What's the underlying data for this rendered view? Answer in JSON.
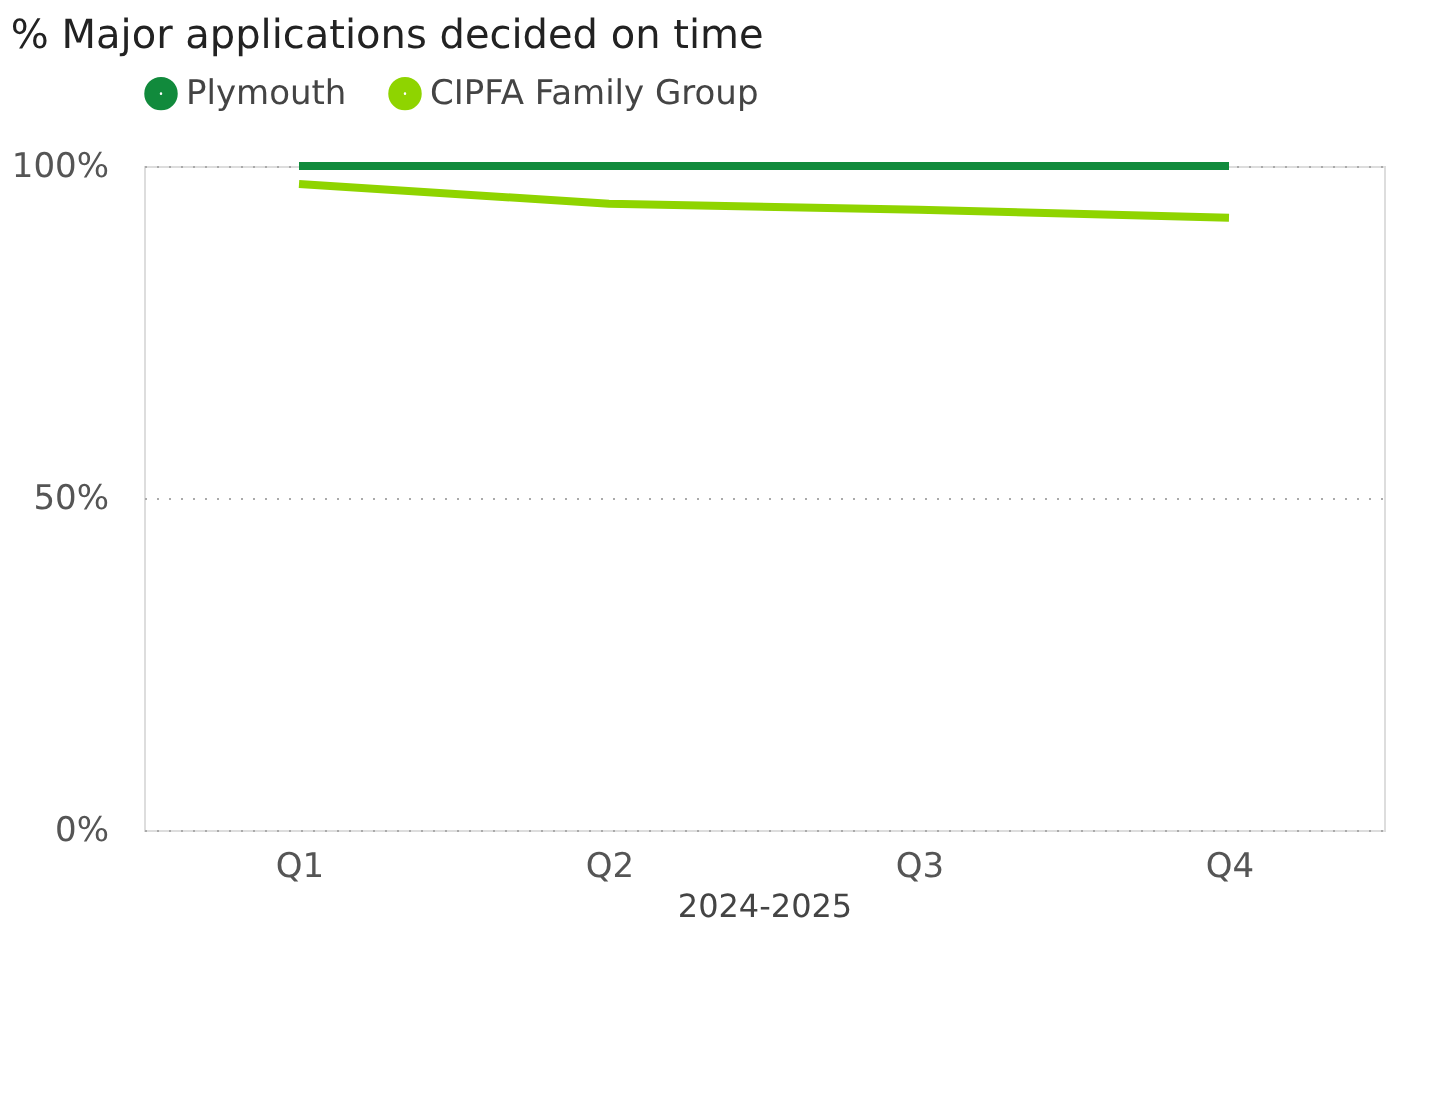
{
  "chart_data": {
    "type": "line",
    "title": "% Major applications decided on time",
    "categories": [
      "Q1",
      "Q2",
      "Q3",
      "Q4"
    ],
    "xlabel": "2024-2025",
    "series": [
      {
        "name": "Plymouth",
        "color": "#118a3c",
        "values": [
          100,
          100,
          100,
          100
        ]
      },
      {
        "name": "CIPFA Family Group",
        "color": "#8fd400",
        "values": [
          97.3,
          94.3,
          93.4,
          92.2
        ]
      }
    ],
    "ylim": [
      0,
      100
    ],
    "yticks": [
      {
        "value": 0,
        "label": "0%"
      },
      {
        "value": 50,
        "label": "50%"
      },
      {
        "value": 100,
        "label": "100%"
      }
    ],
    "grid": "y",
    "legend": "top left",
    "marker": "none",
    "line_style": "solid"
  }
}
